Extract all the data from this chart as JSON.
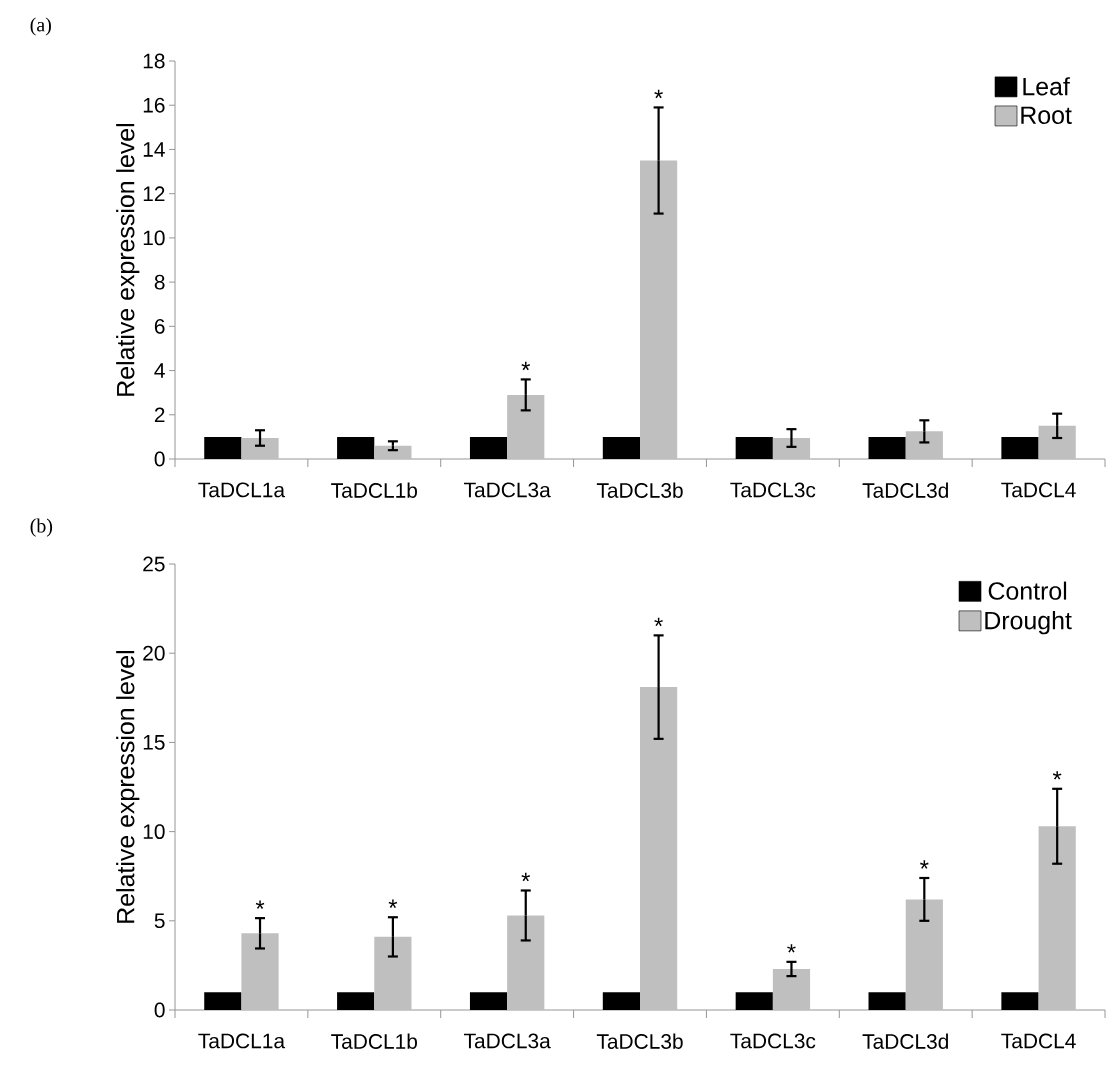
{
  "chart_data": [
    {
      "type": "bar",
      "title": "(a)",
      "ylabel": "Relative expression level",
      "categories": [
        "TaDCL1a",
        "TaDCL1b",
        "TaDCL3a",
        "TaDCL3b",
        "TaDCL3c",
        "TaDCL3d",
        "TaDCL4"
      ],
      "series": [
        {
          "name": "Leaf",
          "color": "#000000",
          "values": [
            1,
            1,
            1,
            1,
            1,
            1,
            1
          ]
        },
        {
          "name": "Root",
          "color": "#bfbfbf",
          "values": [
            0.95,
            0.6,
            2.9,
            13.5,
            0.95,
            1.25,
            1.5
          ],
          "errors": [
            0.35,
            0.2,
            0.7,
            2.4,
            0.4,
            0.5,
            0.55
          ],
          "value_labels": [
            null,
            null,
            "*",
            "*",
            null,
            null,
            null
          ]
        }
      ],
      "ylim": [
        0,
        18
      ],
      "yticks": [
        0,
        2,
        4,
        6,
        8,
        10,
        12,
        14,
        16,
        18
      ],
      "legend": "top right"
    },
    {
      "type": "bar",
      "title": "(b)",
      "ylabel": "Relative expression level",
      "categories": [
        "TaDCL1a",
        "TaDCL1b",
        "TaDCL3a",
        "TaDCL3b",
        "TaDCL3c",
        "TaDCL3d",
        "TaDCL4"
      ],
      "series": [
        {
          "name": "Control",
          "color": "#000000",
          "values": [
            1,
            1,
            1,
            1,
            1,
            1,
            1
          ]
        },
        {
          "name": "Drought",
          "color": "#bfbfbf",
          "values": [
            4.3,
            4.1,
            5.3,
            18.1,
            2.3,
            6.2,
            10.3
          ],
          "errors": [
            0.85,
            1.1,
            1.4,
            2.9,
            0.4,
            1.2,
            2.1
          ],
          "value_labels": [
            "*",
            "*",
            "*",
            "*",
            "*",
            "*",
            "*"
          ]
        }
      ],
      "ylim": [
        0,
        25
      ],
      "yticks": [
        0,
        5,
        10,
        15,
        20,
        25
      ],
      "legend": "top right"
    }
  ]
}
